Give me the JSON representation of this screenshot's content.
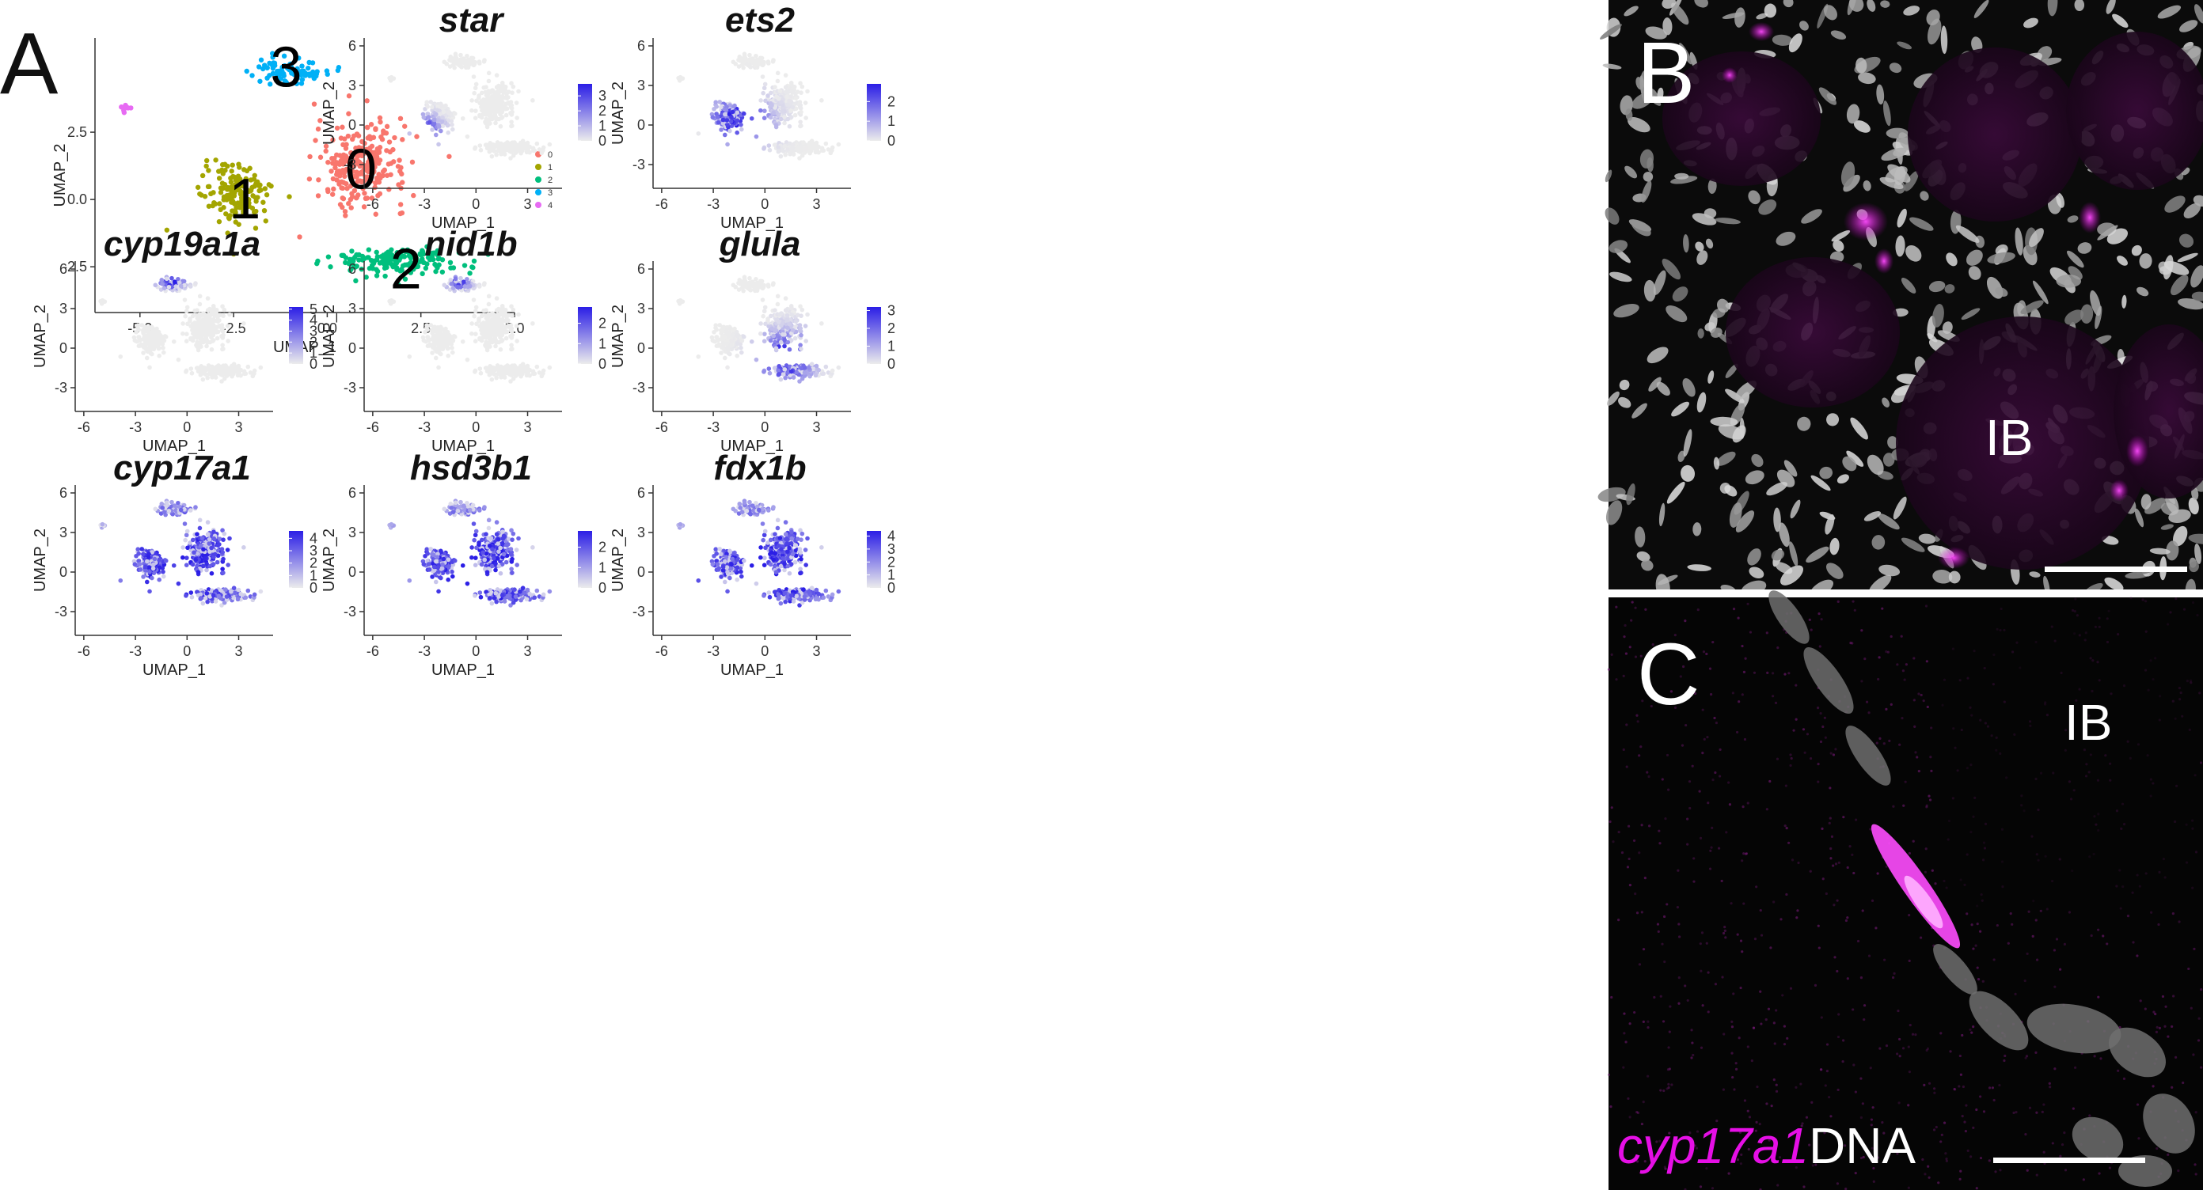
{
  "panel_labels": {
    "a": "A",
    "b": "B",
    "c": "C"
  },
  "micrograph": {
    "b_region_label": "IB",
    "c_region_label": "IB",
    "stain_label": "cyp17a1",
    "dna_label": "DNA",
    "colors": {
      "stain": "#e60fe6",
      "nuclei": "#d2d2d2",
      "background": "#0a0a0a"
    }
  },
  "chart_data": [
    {
      "type": "scatter",
      "xlabel": "UMAP_1",
      "ylabel": "UMAP_2",
      "xticks": [
        "-5.0",
        "-2.5",
        "0.0",
        "2.5",
        "5.0"
      ],
      "yticks": [
        "2.5",
        "0.0",
        "-2.5"
      ],
      "xlim": [
        -6.2,
        5.0
      ],
      "ylim": [
        -4.2,
        6.0
      ],
      "legend": {
        "placement": "right",
        "entries": [
          "0",
          "1",
          "2",
          "3",
          "4"
        ]
      },
      "cluster_colors": [
        "#f8766d",
        "#a3a500",
        "#00bf7d",
        "#00b0f6",
        "#e76bf3"
      ],
      "cluster_annotations": [
        "0",
        "1",
        "2",
        "3"
      ],
      "clusters": [
        {
          "name": "0",
          "center": [
            0.9,
            1.3
          ],
          "spread": [
            1.1,
            1.4
          ],
          "n": 260
        },
        {
          "name": "1",
          "center": [
            -2.4,
            0.2
          ],
          "spread": [
            0.8,
            1.0
          ],
          "n": 170
        },
        {
          "name": "2",
          "center": [
            1.9,
            -2.3
          ],
          "spread": [
            1.6,
            0.5
          ],
          "n": 170
        },
        {
          "name": "3",
          "center": [
            -1.0,
            4.8
          ],
          "spread": [
            0.9,
            0.4
          ],
          "n": 90
        },
        {
          "name": "4",
          "center": [
            -5.4,
            3.4
          ],
          "spread": [
            0.08,
            0.08
          ],
          "n": 10
        }
      ]
    },
    {
      "type": "scatter",
      "title": "star",
      "xlabel": "UMAP_1",
      "ylabel": "UMAP_2",
      "xticks": [
        "-6",
        "-3",
        "0",
        "3"
      ],
      "yticks": [
        "6",
        "3",
        "0",
        "-3"
      ],
      "xlim": [
        -6.5,
        5
      ],
      "ylim": [
        -4.8,
        6.6
      ],
      "colorbar": {
        "min": 0,
        "max": 3.8,
        "ticks": [
          "0",
          "1",
          "2",
          "3"
        ]
      },
      "expression_focus": {
        "center": [
          -2.9,
          -0.5
        ],
        "spread": [
          0.9,
          1.2
        ]
      }
    },
    {
      "type": "scatter",
      "title": "ets2",
      "xlabel": "UMAP_1",
      "ylabel": "UMAP_2",
      "xticks": [
        "-6",
        "-3",
        "0",
        "3"
      ],
      "yticks": [
        "6",
        "3",
        "0",
        "-3"
      ],
      "xlim": [
        -6.5,
        5
      ],
      "ylim": [
        -4.8,
        6.6
      ],
      "colorbar": {
        "min": 0,
        "max": 2.9,
        "ticks": [
          "0",
          "1",
          "2"
        ]
      },
      "expression_focus": {
        "center": [
          -1.5,
          0.3
        ],
        "spread": [
          1.8,
          1.8
        ]
      }
    },
    {
      "type": "scatter",
      "title": "cyp19a1a",
      "xlabel": "UMAP_1",
      "ylabel": "UMAP_2",
      "xticks": [
        "-6",
        "-3",
        "0",
        "3"
      ],
      "yticks": [
        "6",
        "3",
        "0",
        "-3"
      ],
      "xlim": [
        -6.5,
        5
      ],
      "ylim": [
        -4.8,
        6.6
      ],
      "colorbar": {
        "min": 0,
        "max": 5.2,
        "ticks": [
          "0",
          "1",
          "2",
          "3",
          "4",
          "5"
        ]
      },
      "expression_focus": {
        "center": [
          -0.9,
          5.0
        ],
        "spread": [
          0.8,
          0.5
        ]
      }
    },
    {
      "type": "scatter",
      "title": "nid1b",
      "xlabel": "UMAP_1",
      "ylabel": "UMAP_2",
      "xticks": [
        "-6",
        "-3",
        "0",
        "3"
      ],
      "yticks": [
        "6",
        "3",
        "0",
        "-3"
      ],
      "xlim": [
        -6.5,
        5
      ],
      "ylim": [
        -4.8,
        6.6
      ],
      "colorbar": {
        "min": 0,
        "max": 2.8,
        "ticks": [
          "0",
          "1",
          "2"
        ]
      },
      "expression_focus": {
        "center": [
          -1.0,
          5.0
        ],
        "spread": [
          0.7,
          0.5
        ]
      }
    },
    {
      "type": "scatter",
      "title": "glula",
      "xlabel": "UMAP_1",
      "ylabel": "UMAP_2",
      "xticks": [
        "-6",
        "-3",
        "0",
        "3"
      ],
      "yticks": [
        "6",
        "3",
        "0",
        "-3"
      ],
      "xlim": [
        -6.5,
        5
      ],
      "ylim": [
        -4.8,
        6.6
      ],
      "colorbar": {
        "min": 0,
        "max": 3.2,
        "ticks": [
          "0",
          "1",
          "2",
          "3"
        ]
      },
      "expression_focus": {
        "center": [
          1.2,
          -0.8
        ],
        "spread": [
          1.6,
          2.0
        ]
      }
    },
    {
      "type": "scatter",
      "title": "cyp17a1",
      "xlabel": "UMAP_1",
      "ylabel": "UMAP_2",
      "xticks": [
        "-6",
        "-3",
        "0",
        "3"
      ],
      "yticks": [
        "6",
        "3",
        "0",
        "-3"
      ],
      "xlim": [
        -6.5,
        5
      ],
      "ylim": [
        -4.8,
        6.6
      ],
      "colorbar": {
        "min": 0,
        "max": 4.6,
        "ticks": [
          "0",
          "1",
          "2",
          "3",
          "4"
        ]
      },
      "expression_focus": {
        "center": [
          0,
          0.5
        ],
        "spread": [
          6,
          6
        ]
      }
    },
    {
      "type": "scatter",
      "title": "hsd3b1",
      "xlabel": "UMAP_1",
      "ylabel": "UMAP_2",
      "xticks": [
        "-6",
        "-3",
        "0",
        "3"
      ],
      "yticks": [
        "6",
        "3",
        "0",
        "-3"
      ],
      "xlim": [
        -6.5,
        5
      ],
      "ylim": [
        -4.8,
        6.6
      ],
      "colorbar": {
        "min": 0,
        "max": 2.8,
        "ticks": [
          "0",
          "1",
          "2"
        ]
      },
      "expression_focus": {
        "center": [
          0,
          0
        ],
        "spread": [
          6,
          6
        ]
      }
    },
    {
      "type": "scatter",
      "title": "fdx1b",
      "xlabel": "UMAP_1",
      "ylabel": "UMAP_2",
      "xticks": [
        "-6",
        "-3",
        "0",
        "3"
      ],
      "yticks": [
        "6",
        "3",
        "0",
        "-3"
      ],
      "xlim": [
        -6.5,
        5
      ],
      "ylim": [
        -4.8,
        6.6
      ],
      "colorbar": {
        "min": 0,
        "max": 4.4,
        "ticks": [
          "0",
          "1",
          "2",
          "3",
          "4"
        ]
      },
      "expression_focus": {
        "center": [
          0,
          0
        ],
        "spread": [
          6,
          6
        ]
      }
    }
  ]
}
